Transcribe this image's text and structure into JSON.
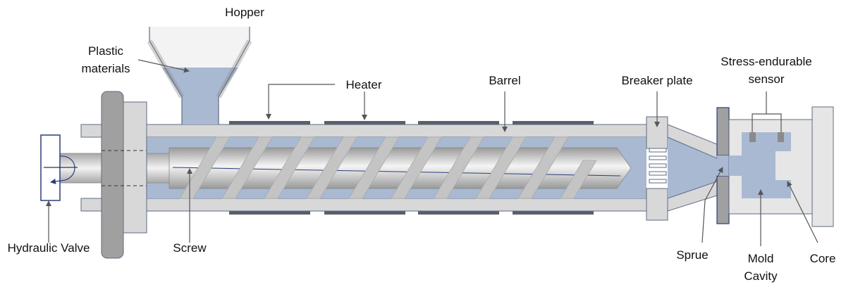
{
  "labels": {
    "hopper": "Hopper",
    "plastic_1": "Plastic",
    "plastic_2": "materials",
    "heater": "Heater",
    "barrel": "Barrel",
    "breaker_plate": "Breaker plate",
    "sensor_1": "Stress-endurable",
    "sensor_2": "sensor",
    "hydraulic_valve": "Hydraulic Valve",
    "screw": "Screw",
    "sprue": "Sprue",
    "mold_1": "Mold",
    "mold_2": "Cavity",
    "core": "Core"
  },
  "colors": {
    "plastic_fill": "#a9b9d2",
    "barrel_fill": "#d8d8d8",
    "heater_fill": "#5a5f6b",
    "mold_fill": "#e6e6e6",
    "flange_fill": "#a0a0a0",
    "outline": "#5e6a86",
    "screw_highlight": "#f5f5f5",
    "screw_shadow": "#9a9a9a",
    "flight_fill": "#c4c4c4",
    "valve_stroke": "#2a3d7a"
  }
}
